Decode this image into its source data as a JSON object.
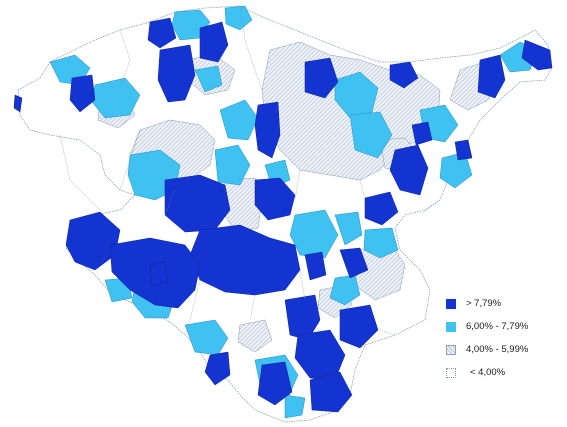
{
  "colors": {
    "class_high": "#1434d2",
    "class_mid_high": "#3fc2f2",
    "class_mid_low": "#c9d4e6",
    "class_low": "#ffffff",
    "border": "#7a8aa0"
  },
  "legend": {
    "items": [
      {
        "label": "> 7,79%",
        "class": "high"
      },
      {
        "label": "6,00% - 7,79%",
        "class": "mid_high"
      },
      {
        "label": "4,00% - 5,99%",
        "class": "mid_low"
      },
      {
        "label": "< 4,00%",
        "class": "low"
      }
    ]
  }
}
